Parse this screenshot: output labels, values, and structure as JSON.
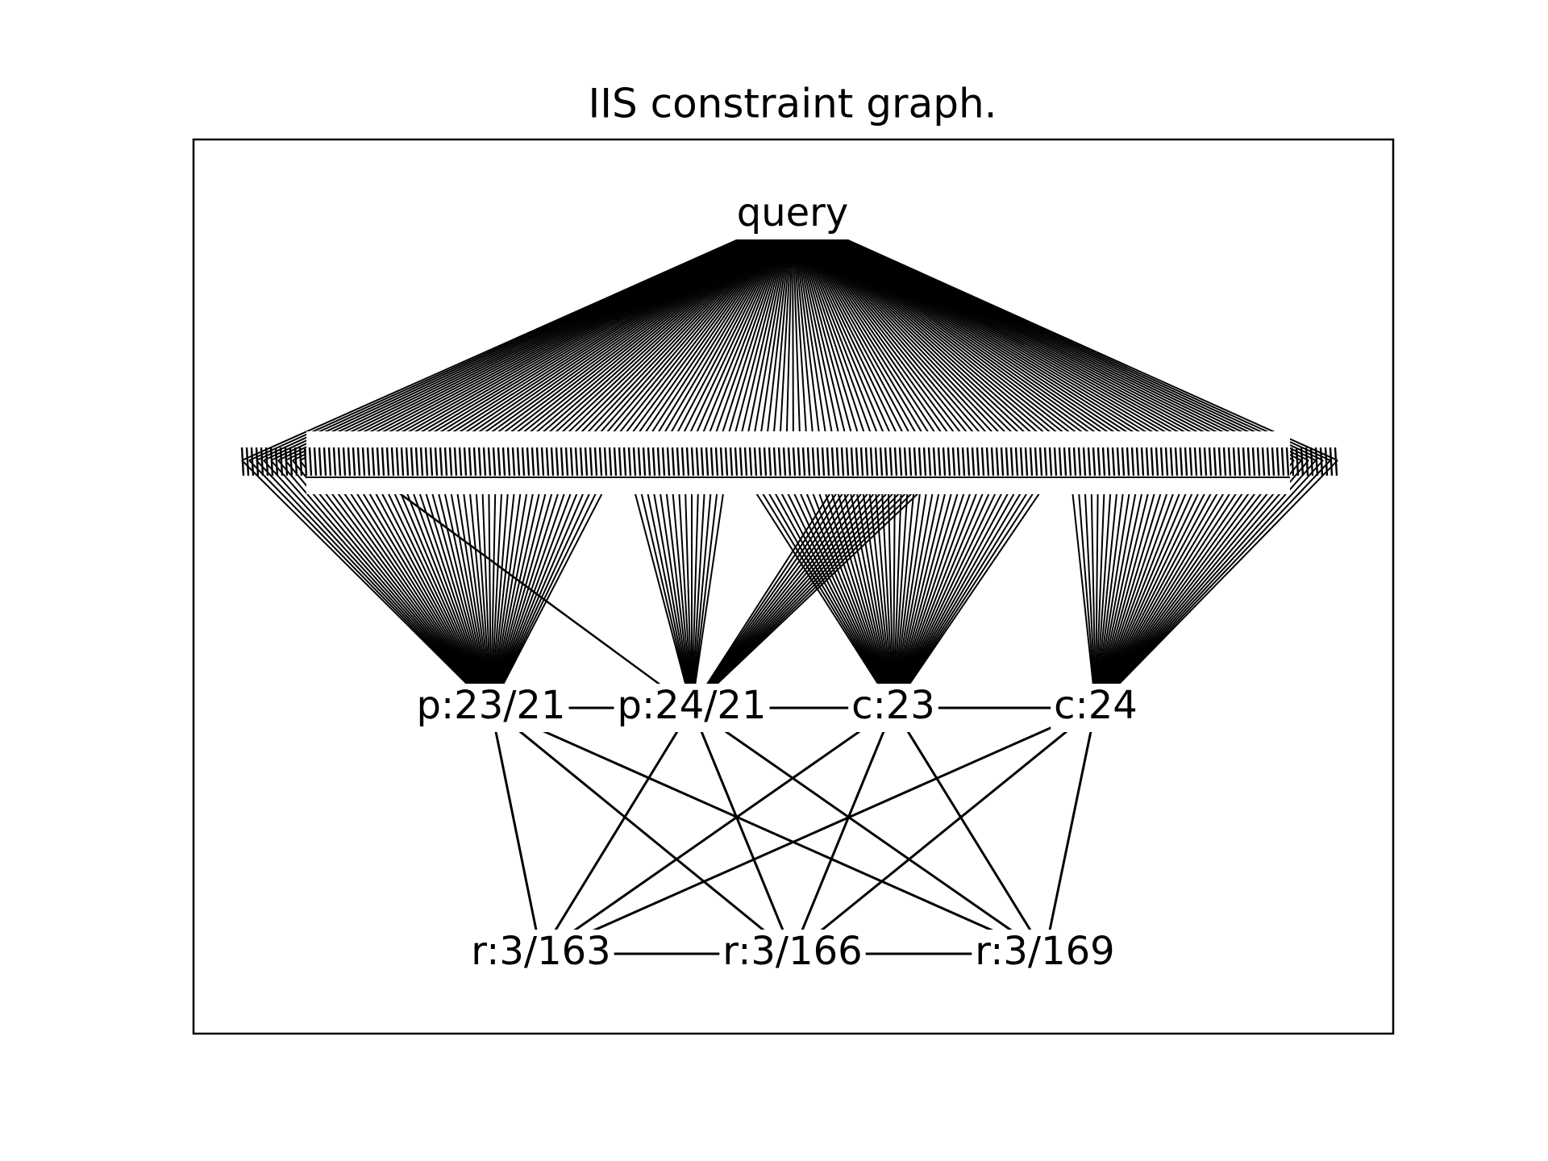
{
  "title": "IIS constraint graph.",
  "nodes": [
    {
      "label": "query"
    },
    {
      "label": "p:23/21"
    },
    {
      "label": "p:24/21"
    },
    {
      "label": "c:23"
    },
    {
      "label": "c:24"
    },
    {
      "label": "r:3/163"
    },
    {
      "label": "r:3/166"
    },
    {
      "label": "r:3/169"
    }
  ],
  "edges": [
    [
      1,
      3
    ],
    [
      2,
      4
    ],
    [
      1,
      5
    ],
    [
      1,
      6
    ],
    [
      1,
      7
    ],
    [
      2,
      5
    ],
    [
      2,
      6
    ],
    [
      2,
      7
    ],
    [
      3,
      5
    ],
    [
      3,
      6
    ],
    [
      3,
      7
    ],
    [
      4,
      5
    ],
    [
      4,
      6
    ],
    [
      4,
      7
    ],
    [
      5,
      7
    ]
  ]
}
